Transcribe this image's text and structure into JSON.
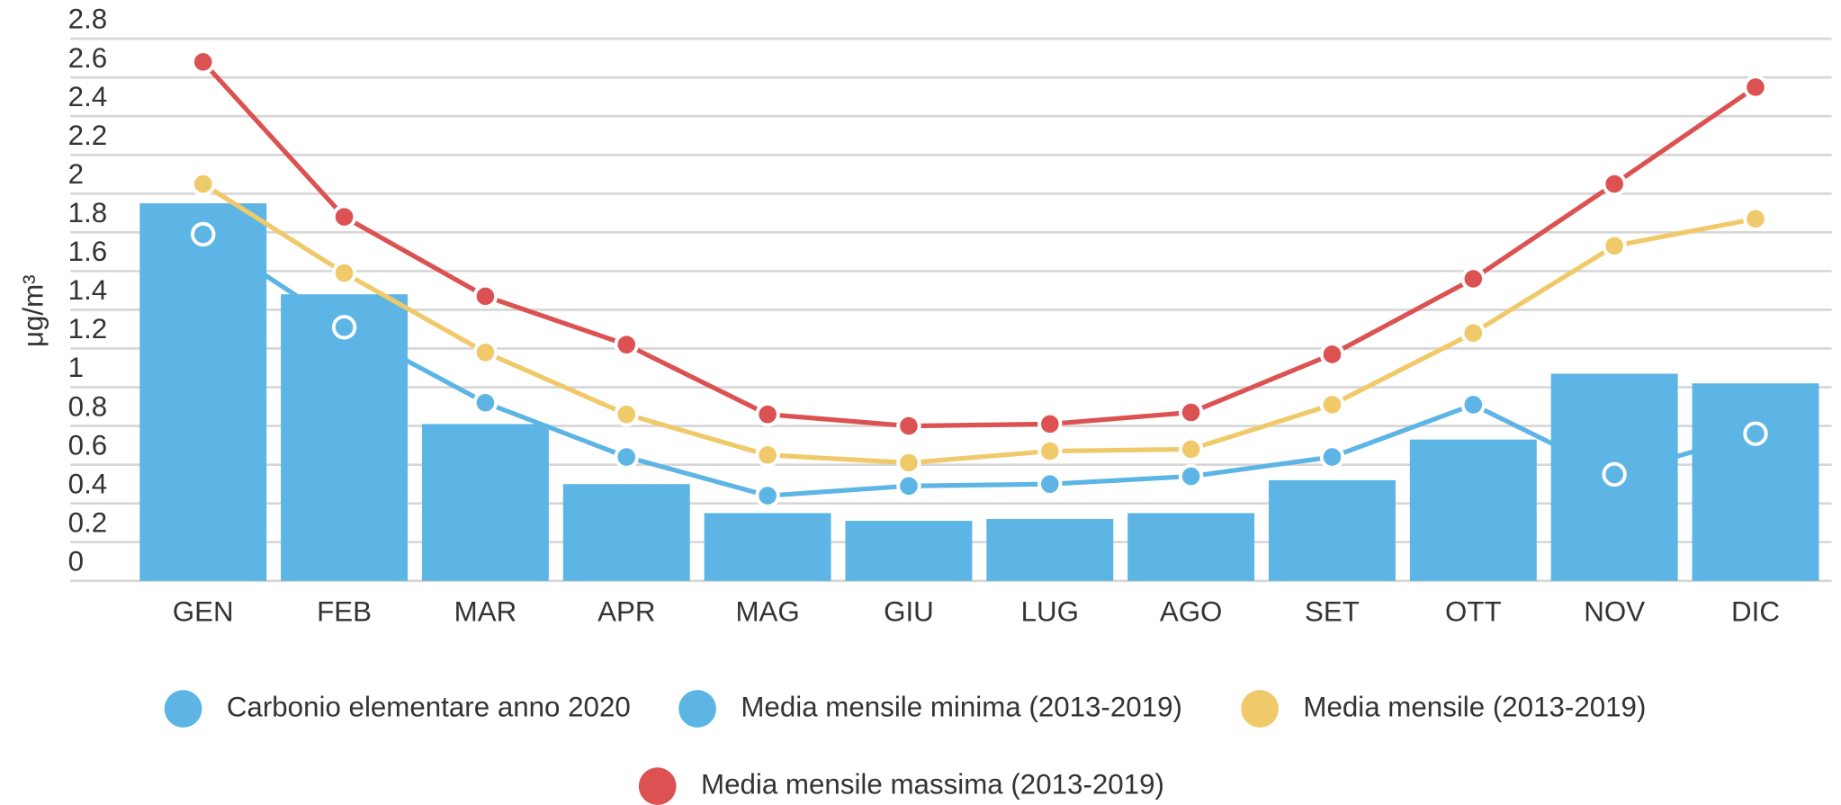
{
  "chart_data": {
    "type": "bar",
    "y_label": "μg/m³",
    "categories": [
      "GEN",
      "FEB",
      "MAR",
      "APR",
      "MAG",
      "GIU",
      "LUG",
      "AGO",
      "SET",
      "OTT",
      "NOV",
      "DIC"
    ],
    "series": [
      {
        "name": "Carbonio elementare anno 2020",
        "type": "bar",
        "color": "#5db5e5",
        "values": [
          1.95,
          1.48,
          0.81,
          0.5,
          0.35,
          0.31,
          0.32,
          0.35,
          0.52,
          0.73,
          1.07,
          1.02
        ]
      },
      {
        "name": "Media mensile minima (2013-2019)",
        "type": "line",
        "color": "#5db5e5",
        "values": [
          1.79,
          1.31,
          0.92,
          0.64,
          0.44,
          0.49,
          0.5,
          0.54,
          0.64,
          0.91,
          0.55,
          0.76
        ]
      },
      {
        "name": "Media mensile (2013-2019)",
        "type": "line",
        "color": "#f0c96a",
        "values": [
          2.05,
          1.59,
          1.18,
          0.86,
          0.65,
          0.61,
          0.67,
          0.68,
          0.91,
          1.28,
          1.73,
          1.87
        ]
      },
      {
        "name": "Media mensile massima (2013-2019)",
        "type": "line",
        "color": "#dc5252",
        "values": [
          2.68,
          1.88,
          1.47,
          1.22,
          0.86,
          0.8,
          0.81,
          0.87,
          1.17,
          1.56,
          2.05,
          2.55
        ]
      }
    ],
    "ylim": [
      0,
      2.8
    ],
    "yticks": [
      0,
      0.2,
      0.4,
      0.6,
      0.8,
      1,
      1.2,
      1.4,
      1.6,
      1.8,
      2,
      2.2,
      2.4,
      2.6,
      2.8
    ],
    "grid": true
  }
}
